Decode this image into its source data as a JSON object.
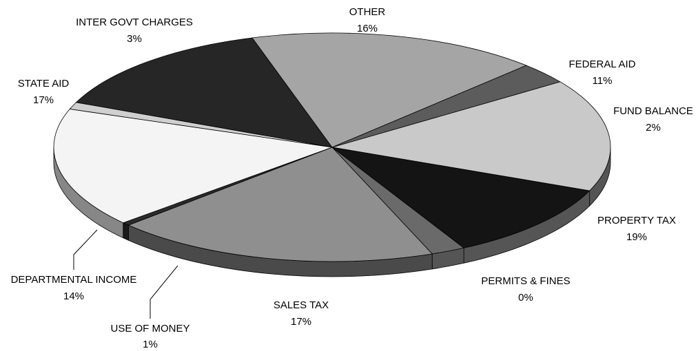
{
  "chart_data": {
    "type": "pie",
    "style": "3d-exploded-pie",
    "title": "",
    "slices": [
      {
        "name": "OTHER",
        "label": "16%",
        "value": 16,
        "color": "#c9c9c9"
      },
      {
        "name": "FEDERAL AID",
        "label": "11%",
        "value": 11,
        "color": "#141414"
      },
      {
        "name": "FUND BALANCE",
        "label": "2%",
        "value": 2,
        "color": "#6a6a6a"
      },
      {
        "name": "PROPERTY TAX",
        "label": "19%",
        "value": 19,
        "color": "#8f8f8f"
      },
      {
        "name": "PERMITS & FINES",
        "label": "0%",
        "value": 0,
        "color": "#2b2b2b"
      },
      {
        "name": "SALES TAX",
        "label": "17%",
        "value": 17,
        "color": "#f4f4f4"
      },
      {
        "name": "USE OF MONEY",
        "label": "1%",
        "value": 1,
        "color": "#cfcfcf"
      },
      {
        "name": "DEPARTMENTAL INCOME",
        "label": "14%",
        "value": 14,
        "color": "#262626"
      },
      {
        "name": "STATE AID",
        "label": "17%",
        "value": 17,
        "color": "#a5a5a5"
      },
      {
        "name": "INTER GOVT CHARGES",
        "label": "3%",
        "value": 3,
        "color": "#5c5c5c"
      }
    ],
    "side_colors": {
      "PROPERTY TAX": "#4a4a4a",
      "PERMITS & FINES": "#1a1a1a",
      "SALES TAX": "#878787",
      "USE OF MONEY": "#777777",
      "DEPARTMENTAL INCOME": "#1a1a1a",
      "STATE AID": "#4d4d4d"
    },
    "legend": "none",
    "label_placement": "outside, beside each slice"
  }
}
